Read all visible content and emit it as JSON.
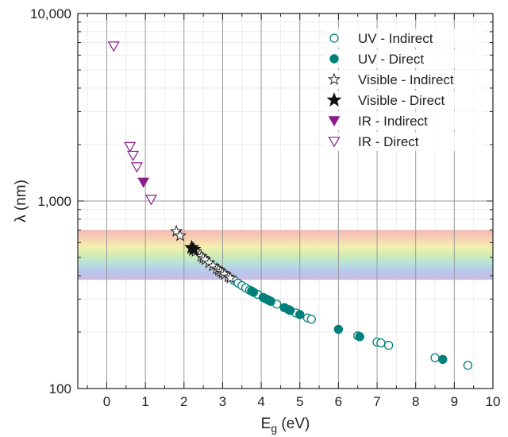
{
  "chart_data": {
    "type": "scatter",
    "title": "",
    "xlabel": "E",
    "xlabel_sub": "g",
    "xlabel_unit": " (eV)",
    "ylabel": "λ (nm)",
    "xlim": [
      -0.75,
      10
    ],
    "ylim": [
      100,
      10000
    ],
    "y_scale": "log",
    "x_ticks": [
      0,
      1,
      2,
      3,
      4,
      5,
      6,
      7,
      8,
      9,
      10
    ],
    "x_tick_labels": [
      "0",
      "1",
      "2",
      "3",
      "4",
      "5",
      "6",
      "7",
      "8",
      "9",
      "10"
    ],
    "y_ticks": [
      100,
      1000,
      10000
    ],
    "y_tick_labels": [
      "100",
      "1,000",
      "10,000"
    ],
    "grid": true,
    "legend_position": "top-right",
    "visible_band_nm": [
      380,
      700
    ],
    "series": [
      {
        "name": "UV - Indirect",
        "marker": "circle-open",
        "color": "#00807a",
        "points": [
          [
            3.3,
            376
          ],
          [
            3.4,
            365
          ],
          [
            3.5,
            354
          ],
          [
            3.6,
            344
          ],
          [
            3.7,
            335
          ],
          [
            3.9,
            318
          ],
          [
            4.1,
            302
          ],
          [
            4.2,
            295
          ],
          [
            4.4,
            282
          ],
          [
            4.6,
            270
          ],
          [
            4.9,
            253
          ],
          [
            5.2,
            238
          ],
          [
            5.3,
            234
          ],
          [
            6.5,
            191
          ],
          [
            7.0,
            177
          ],
          [
            7.1,
            175
          ],
          [
            7.3,
            170
          ],
          [
            8.5,
            146
          ],
          [
            9.35,
            133
          ]
        ]
      },
      {
        "name": "UV - Direct",
        "marker": "circle-filled",
        "color": "#00807a",
        "points": [
          [
            3.75,
            331
          ],
          [
            3.8,
            326
          ],
          [
            4.05,
            306
          ],
          [
            4.15,
            299
          ],
          [
            4.25,
            292
          ],
          [
            4.6,
            270
          ],
          [
            4.7,
            264
          ],
          [
            4.75,
            261
          ],
          [
            5.0,
            248
          ],
          [
            6.0,
            207
          ],
          [
            6.55,
            189
          ],
          [
            8.7,
            143
          ]
        ]
      },
      {
        "name": "Visible - Indirect",
        "marker": "star-open",
        "color": "#222222",
        "points": [
          [
            1.8,
            689
          ],
          [
            1.9,
            653
          ],
          [
            2.3,
            539
          ],
          [
            2.45,
            506
          ],
          [
            2.5,
            496
          ],
          [
            2.55,
            486
          ],
          [
            2.65,
            468
          ],
          [
            2.75,
            451
          ],
          [
            2.85,
            435
          ],
          [
            2.9,
            428
          ],
          [
            2.95,
            420
          ],
          [
            3.0,
            413
          ],
          [
            3.05,
            407
          ],
          [
            3.15,
            394
          ],
          [
            3.2,
            388
          ]
        ]
      },
      {
        "name": "Visible - Direct",
        "marker": "star-filled",
        "color": "#111111",
        "points": [
          [
            2.2,
            564
          ],
          [
            2.25,
            551
          ]
        ]
      },
      {
        "name": "IR - Indirect",
        "marker": "triangle-down-filled",
        "color": "#8b1a8b",
        "points": [
          [
            0.95,
            1260
          ]
        ]
      },
      {
        "name": "IR - Direct",
        "marker": "triangle-down-open",
        "color": "#8b1a8b",
        "points": [
          [
            0.18,
            6700
          ],
          [
            0.6,
            1950
          ],
          [
            0.68,
            1750
          ],
          [
            0.78,
            1520
          ],
          [
            1.15,
            1020
          ]
        ]
      }
    ]
  }
}
